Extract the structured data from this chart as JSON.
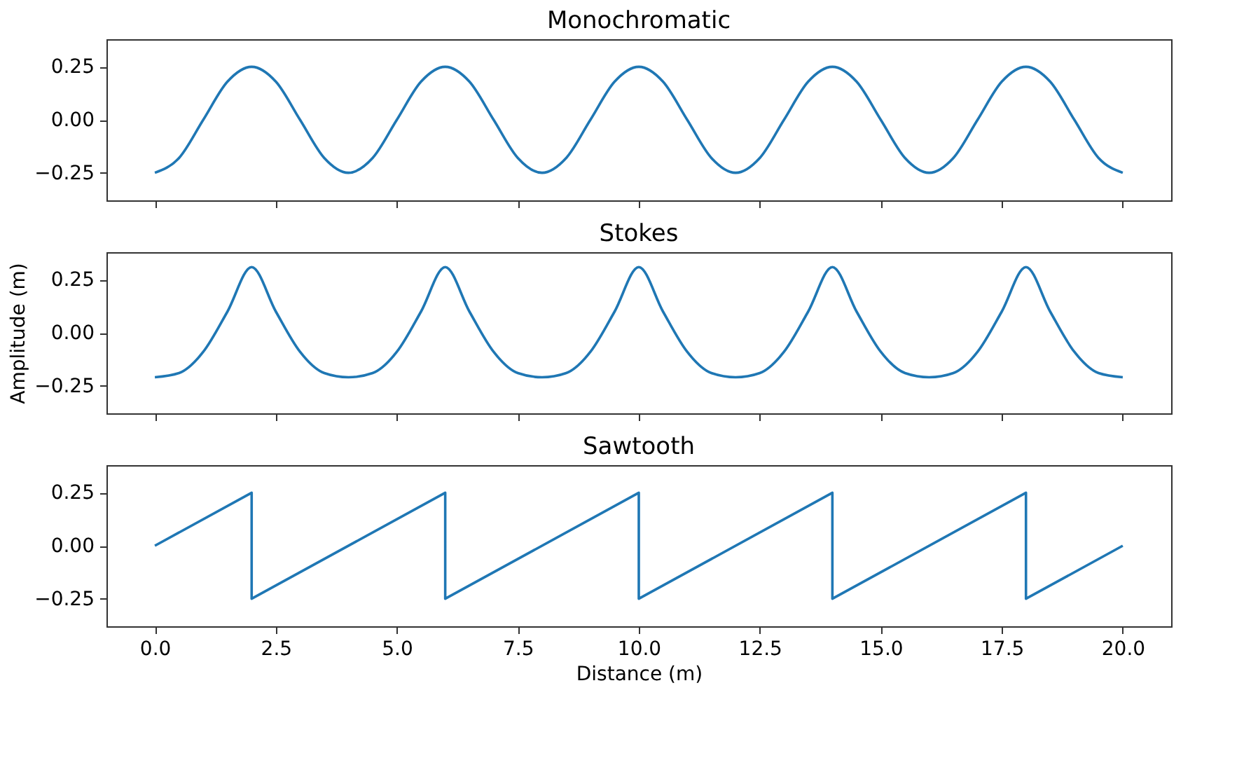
{
  "chart_data": [
    {
      "type": "line",
      "title": "Monochromatic",
      "xlim": [
        -1,
        21
      ],
      "xticks": [
        {
          "value": 0,
          "label": null
        },
        {
          "value": 2.5,
          "label": null
        },
        {
          "value": 5,
          "label": null
        },
        {
          "value": 7.5,
          "label": null
        },
        {
          "value": 10,
          "label": null
        },
        {
          "value": 12.5,
          "label": null
        },
        {
          "value": 15,
          "label": null
        },
        {
          "value": 17.5,
          "label": null
        },
        {
          "value": 20,
          "label": null
        }
      ],
      "ylim": [
        -0.38,
        0.38
      ],
      "yticks": [
        {
          "value": -0.25,
          "label": "−0.25"
        },
        {
          "value": 0,
          "label": "0.00"
        },
        {
          "value": 0.25,
          "label": "0.25"
        }
      ],
      "tick_labels": "y",
      "grid": false,
      "x": [
        0,
        0.5,
        1,
        1.5,
        2,
        2.5,
        3,
        3.5,
        4,
        4.5,
        5,
        5.5,
        6,
        6.5,
        7,
        7.5,
        8,
        8.5,
        9,
        9.5,
        10,
        10.5,
        11,
        11.5,
        12,
        12.5,
        13,
        13.5,
        14,
        14.5,
        15,
        15.5,
        16,
        16.5,
        17,
        17.5,
        18,
        18.5,
        19,
        19.5,
        20
      ],
      "series": [
        {
          "color": "#1f77b4",
          "values": [
            -0.25,
            -0.18,
            0,
            0.18,
            0.25,
            0.18,
            0,
            -0.18,
            -0.25,
            -0.18,
            0,
            0.18,
            0.25,
            0.18,
            0,
            -0.18,
            -0.25,
            -0.18,
            0,
            0.18,
            0.25,
            0.18,
            0,
            -0.18,
            -0.25,
            -0.18,
            0,
            0.18,
            0.25,
            0.18,
            0,
            -0.18,
            -0.25,
            -0.18,
            0,
            0.18,
            0.25,
            0.18,
            0,
            -0.18,
            -0.25
          ]
        }
      ]
    },
    {
      "type": "line",
      "title": "Stokes",
      "ylabel": "Amplitude (m)",
      "xlim": [
        -1,
        21
      ],
      "xticks": [
        {
          "value": 0,
          "label": null
        },
        {
          "value": 2.5,
          "label": null
        },
        {
          "value": 5,
          "label": null
        },
        {
          "value": 7.5,
          "label": null
        },
        {
          "value": 10,
          "label": null
        },
        {
          "value": 12.5,
          "label": null
        },
        {
          "value": 15,
          "label": null
        },
        {
          "value": 17.5,
          "label": null
        },
        {
          "value": 20,
          "label": null
        }
      ],
      "ylim": [
        -0.38,
        0.38
      ],
      "yticks": [
        {
          "value": -0.25,
          "label": "−0.25"
        },
        {
          "value": 0,
          "label": "0.00"
        },
        {
          "value": 0.25,
          "label": "0.25"
        }
      ],
      "tick_labels": "y",
      "grid": false,
      "x": [
        0,
        0.5,
        1,
        1.5,
        2,
        2.5,
        3,
        3.5,
        4,
        4.5,
        5,
        5.5,
        6,
        6.5,
        7,
        7.5,
        8,
        8.5,
        9,
        9.5,
        10,
        10.5,
        11,
        11.5,
        12,
        12.5,
        13,
        13.5,
        14,
        14.5,
        15,
        15.5,
        16,
        16.5,
        17,
        17.5,
        18,
        18.5,
        19,
        19.5,
        20
      ],
      "series": [
        {
          "color": "#1f77b4",
          "values": [
            -0.21,
            -0.19,
            -0.09,
            0.1,
            0.31,
            0.1,
            -0.09,
            -0.19,
            -0.21,
            -0.19,
            -0.09,
            0.1,
            0.31,
            0.1,
            -0.09,
            -0.19,
            -0.21,
            -0.19,
            -0.09,
            0.1,
            0.31,
            0.1,
            -0.09,
            -0.19,
            -0.21,
            -0.19,
            -0.09,
            0.1,
            0.31,
            0.1,
            -0.09,
            -0.19,
            -0.21,
            -0.19,
            -0.09,
            0.1,
            0.31,
            0.1,
            -0.09,
            -0.19,
            -0.21
          ]
        }
      ]
    },
    {
      "type": "line",
      "title": "Sawtooth",
      "xlabel": "Distance (m)",
      "xlim": [
        -1,
        21
      ],
      "xticks": [
        {
          "value": 0,
          "label": "0.0"
        },
        {
          "value": 2.5,
          "label": "2.5"
        },
        {
          "value": 5,
          "label": "5.0"
        },
        {
          "value": 7.5,
          "label": "7.5"
        },
        {
          "value": 10,
          "label": "10.0"
        },
        {
          "value": 12.5,
          "label": "12.5"
        },
        {
          "value": 15,
          "label": "15.0"
        },
        {
          "value": 17.5,
          "label": "17.5"
        },
        {
          "value": 20,
          "label": "20.0"
        }
      ],
      "ylim": [
        -0.38,
        0.38
      ],
      "yticks": [
        {
          "value": -0.25,
          "label": "−0.25"
        },
        {
          "value": 0,
          "label": "0.00"
        },
        {
          "value": 0.25,
          "label": "0.25"
        }
      ],
      "grid": false,
      "x": [
        0,
        2,
        2,
        6,
        6,
        10,
        10,
        14,
        14,
        18,
        18,
        20
      ],
      "series": [
        {
          "color": "#1f77b4",
          "values": [
            0,
            0.25,
            -0.25,
            0.25,
            -0.25,
            0.25,
            -0.25,
            0.25,
            -0.25,
            0.25,
            -0.25,
            0
          ]
        }
      ]
    }
  ]
}
